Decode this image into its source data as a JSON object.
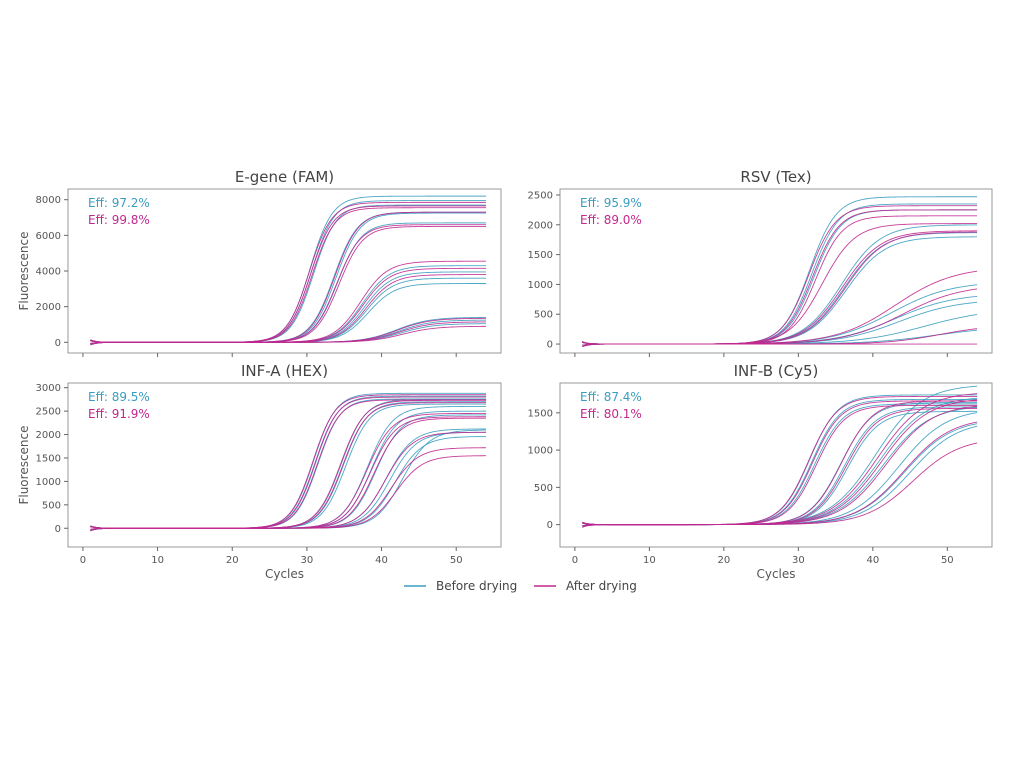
{
  "colors": {
    "before": "#3a9dbf",
    "after": "#c0288f",
    "frame": "#999999"
  },
  "legend": [
    {
      "key": "before",
      "label": "Before drying"
    },
    {
      "key": "after",
      "label": "After drying"
    }
  ],
  "chart_data": [
    {
      "type": "line",
      "title": "E-gene (FAM)",
      "xlabel": "",
      "ylabel": "Fluorescence",
      "xlim": [
        -2,
        56
      ],
      "ylim": [
        -600,
        8600
      ],
      "yticks": [
        0,
        2000,
        4000,
        6000,
        8000
      ],
      "xticks": [],
      "efficiencies": [
        {
          "key": "before",
          "label": "Eff: 97.2%"
        },
        {
          "key": "after",
          "label": "Eff: 99.8%"
        }
      ],
      "series": [
        {
          "key": "before",
          "curves": [
            [
              30.4,
              8200,
              1.5
            ],
            [
              30.6,
              7950,
              1.5
            ],
            [
              30.9,
              7700,
              1.5
            ],
            [
              33.6,
              7300,
              1.6
            ],
            [
              33.9,
              7250,
              1.6
            ],
            [
              34.1,
              6700,
              1.6
            ],
            [
              37.4,
              4300,
              1.8
            ],
            [
              37.7,
              3950,
              1.8
            ],
            [
              38.0,
              3600,
              1.8
            ],
            [
              38.2,
              3300,
              1.8
            ],
            [
              42.0,
              1400,
              2.2
            ],
            [
              42.3,
              1250,
              2.2
            ],
            [
              42.6,
              1050,
              2.2
            ]
          ]
        },
        {
          "key": "after",
          "curves": [
            [
              30.3,
              7850,
              1.5
            ],
            [
              30.5,
              7650,
              1.5
            ],
            [
              30.7,
              7550,
              1.5
            ],
            [
              33.7,
              7300,
              1.6
            ],
            [
              34.0,
              6600,
              1.6
            ],
            [
              34.3,
              6500,
              1.6
            ],
            [
              37.2,
              4550,
              1.8
            ],
            [
              37.5,
              4150,
              1.8
            ],
            [
              37.9,
              3800,
              1.8
            ],
            [
              42.1,
              1350,
              2.2
            ],
            [
              42.4,
              1150,
              2.2
            ],
            [
              42.8,
              900,
              2.2
            ]
          ]
        }
      ]
    },
    {
      "type": "line",
      "title": "RSV (Tex)",
      "xlabel": "",
      "ylabel": "",
      "xlim": [
        -2,
        56
      ],
      "ylim": [
        -150,
        2600
      ],
      "yticks": [
        0,
        500,
        1000,
        1500,
        2000,
        2500
      ],
      "xticks": [],
      "efficiencies": [
        {
          "key": "before",
          "label": "Eff: 95.9%"
        },
        {
          "key": "after",
          "label": "Eff: 89.0%"
        }
      ],
      "series": [
        {
          "key": "before",
          "curves": [
            [
              31.5,
              2470,
              1.8
            ],
            [
              31.8,
              2350,
              1.8
            ],
            [
              32.1,
              2250,
              1.8
            ],
            [
              35.8,
              2000,
              2.6
            ],
            [
              36.1,
              1870,
              2.6
            ],
            [
              36.4,
              1800,
              2.6
            ],
            [
              42.5,
              1050,
              4.0
            ],
            [
              43.0,
              850,
              4.0
            ],
            [
              43.5,
              750,
              4.0
            ],
            [
              47.0,
              600,
              4.5
            ],
            [
              48.5,
              300,
              4.5
            ]
          ]
        },
        {
          "key": "after",
          "curves": [
            [
              31.4,
              2320,
              1.8
            ],
            [
              31.9,
              2250,
              1.8
            ],
            [
              32.3,
              2150,
              1.8
            ],
            [
              33.2,
              2020,
              2.2
            ],
            [
              35.9,
              1900,
              2.6
            ],
            [
              36.3,
              1880,
              2.6
            ],
            [
              43.0,
              1300,
              4.0
            ],
            [
              44.0,
              1000,
              4.0
            ],
            [
              49.0,
              320,
              3.5
            ],
            [
              58.0,
              3,
              3.0
            ]
          ]
        }
      ]
    },
    {
      "type": "line",
      "title": "INF-A (HEX)",
      "xlabel": "Cycles",
      "ylabel": "Fluorescence",
      "xlim": [
        -2,
        56
      ],
      "ylim": [
        -400,
        3100
      ],
      "yticks": [
        0,
        500,
        1000,
        1500,
        2000,
        2500,
        3000
      ],
      "xticks": [
        0,
        10,
        20,
        30,
        40,
        50
      ],
      "efficiencies": [
        {
          "key": "before",
          "label": "Eff: 89.5%"
        },
        {
          "key": "after",
          "label": "Eff: 91.9%"
        }
      ],
      "series": [
        {
          "key": "before",
          "curves": [
            [
              30.9,
              2880,
              1.5
            ],
            [
              31.2,
              2820,
              1.5
            ],
            [
              31.5,
              2760,
              1.5
            ],
            [
              34.6,
              2750,
              1.6
            ],
            [
              34.9,
              2700,
              1.6
            ],
            [
              35.2,
              2650,
              1.6
            ],
            [
              38.1,
              2600,
              1.7
            ],
            [
              38.6,
              2500,
              1.7
            ],
            [
              39.2,
              2420,
              1.7
            ],
            [
              40.6,
              2120,
              1.8
            ],
            [
              41.1,
              2050,
              1.8
            ],
            [
              41.8,
              1960,
              1.8
            ],
            [
              42.8,
              2100,
              1.8
            ]
          ]
        },
        {
          "key": "after",
          "curves": [
            [
              30.8,
              2850,
              1.5
            ],
            [
              31.1,
              2800,
              1.5
            ],
            [
              31.4,
              2740,
              1.5
            ],
            [
              34.5,
              2730,
              1.6
            ],
            [
              34.8,
              2680,
              1.6
            ],
            [
              38.0,
              2450,
              1.7
            ],
            [
              38.5,
              2380,
              1.7
            ],
            [
              39.0,
              2350,
              1.7
            ],
            [
              40.5,
              2050,
              1.8
            ],
            [
              41.3,
              1720,
              1.8
            ],
            [
              41.9,
              1550,
              1.8
            ]
          ]
        }
      ]
    },
    {
      "type": "line",
      "title": "INF-B (Cy5)",
      "xlabel": "Cycles",
      "ylabel": "",
      "xlim": [
        -2,
        56
      ],
      "ylim": [
        -300,
        1900
      ],
      "yticks": [
        0,
        500,
        1000,
        1500
      ],
      "xticks": [
        0,
        10,
        20,
        30,
        40,
        50
      ],
      "efficiencies": [
        {
          "key": "before",
          "label": "Eff: 87.4%"
        },
        {
          "key": "after",
          "label": "Eff: 80.1%"
        }
      ],
      "series": [
        {
          "key": "before",
          "curves": [
            [
              31.5,
              1740,
              1.9
            ],
            [
              31.8,
              1680,
              1.9
            ],
            [
              32.2,
              1620,
              1.9
            ],
            [
              35.7,
              1640,
              2.1
            ],
            [
              36.2,
              1580,
              2.1
            ],
            [
              36.6,
              1520,
              2.1
            ],
            [
              40.4,
              1880,
              3.1
            ],
            [
              40.9,
              1720,
              3.1
            ],
            [
              41.4,
              1600,
              3.1
            ],
            [
              43.5,
              1560,
              3.2
            ],
            [
              44.3,
              1420,
              3.2
            ],
            [
              45.0,
              1400,
              3.2
            ]
          ]
        },
        {
          "key": "after",
          "curves": [
            [
              31.4,
              1720,
              1.9
            ],
            [
              31.9,
              1660,
              1.9
            ],
            [
              32.4,
              1600,
              1.9
            ],
            [
              35.8,
              1660,
              2.1
            ],
            [
              36.4,
              1560,
              2.1
            ],
            [
              40.6,
              1780,
              3.1
            ],
            [
              41.2,
              1700,
              3.1
            ],
            [
              41.8,
              1620,
              3.1
            ],
            [
              44.2,
              1440,
              3.2
            ],
            [
              45.4,
              1170,
              3.2
            ]
          ]
        }
      ]
    }
  ]
}
